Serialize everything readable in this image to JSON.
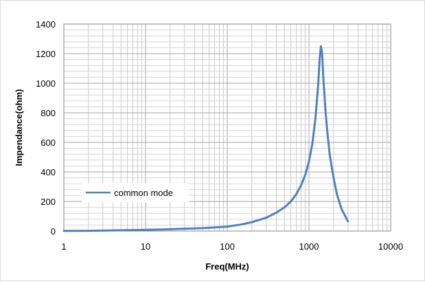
{
  "chart_data": {
    "type": "line",
    "title": "",
    "xlabel": "Freq(MHz)",
    "ylabel": "Impendance(ohm)",
    "x_scale": "log",
    "xlim": [
      1,
      10000
    ],
    "ylim": [
      0,
      1400
    ],
    "x_ticks": [
      1,
      10,
      100,
      1000,
      10000
    ],
    "x_tick_labels": [
      "1",
      "10",
      "100",
      "1000",
      "10000"
    ],
    "y_ticks": [
      0,
      200,
      400,
      600,
      800,
      1000,
      1200,
      1400
    ],
    "y_tick_labels": [
      "0",
      "200",
      "400",
      "600",
      "800",
      "1000",
      "1200",
      "1400"
    ],
    "grid": true,
    "legend_position": "lower-left",
    "series": [
      {
        "name": "common mode",
        "color": "#4F81BD",
        "x": [
          1,
          2,
          5,
          10,
          20,
          50,
          100,
          150,
          200,
          300,
          400,
          500,
          600,
          700,
          800,
          900,
          1000,
          1100,
          1200,
          1300,
          1350,
          1400,
          1450,
          1500,
          1600,
          1700,
          1800,
          2000,
          2200,
          2500,
          3000
        ],
        "y": [
          1,
          2,
          5,
          8,
          12,
          20,
          30,
          45,
          60,
          90,
          125,
          160,
          200,
          250,
          310,
          380,
          470,
          590,
          760,
          1000,
          1160,
          1250,
          1200,
          1030,
          800,
          640,
          510,
          360,
          250,
          150,
          65
        ]
      }
    ]
  }
}
